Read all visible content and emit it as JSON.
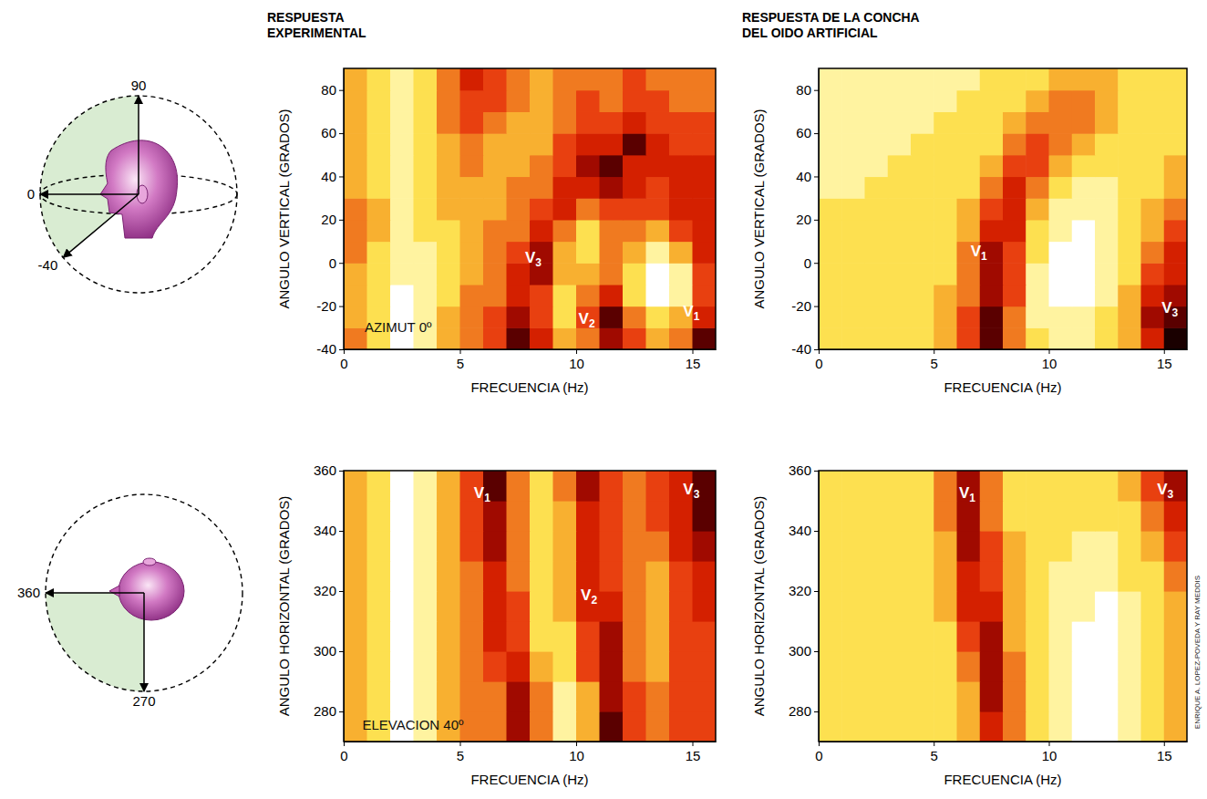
{
  "chart_data": [
    {
      "type": "heatmap",
      "title": "RESPUESTA\nEXPERIMENTAL",
      "xlabel": "FRECUENCIA (Hz)",
      "ylabel": "ANGULO VERTICAL (GRADOS)",
      "xlim": [
        0,
        16
      ],
      "ylim": [
        -40,
        90
      ],
      "xticks": [
        0,
        5,
        10,
        15
      ],
      "yticks": [
        -40,
        -20,
        0,
        20,
        40,
        60,
        80
      ],
      "x_bins": [
        0,
        1,
        2,
        3,
        4,
        5,
        6,
        7,
        8,
        9,
        10,
        11,
        12,
        13,
        14,
        15,
        16
      ],
      "y_bins": [
        -40,
        -30,
        -20,
        -10,
        0,
        10,
        20,
        30,
        40,
        50,
        60,
        70,
        80,
        90
      ],
      "zlim": [
        0,
        9
      ],
      "z": [
        [
          5,
          7,
          9,
          8,
          6,
          5,
          4,
          1,
          3,
          6,
          5,
          2,
          4,
          6,
          5,
          1
        ],
        [
          6,
          7,
          9,
          8,
          6,
          5,
          4,
          2,
          4,
          7,
          4,
          1,
          5,
          7,
          6,
          3
        ],
        [
          6,
          7,
          9,
          8,
          7,
          5,
          5,
          3,
          4,
          7,
          5,
          3,
          7,
          9,
          8,
          4
        ],
        [
          6,
          7,
          8,
          8,
          7,
          6,
          5,
          3,
          2,
          6,
          6,
          5,
          7,
          9,
          8,
          4
        ],
        [
          5,
          7,
          8,
          8,
          7,
          6,
          5,
          4,
          2,
          6,
          7,
          5,
          6,
          8,
          6,
          3
        ],
        [
          5,
          6,
          8,
          7,
          7,
          6,
          5,
          5,
          3,
          5,
          7,
          5,
          5,
          6,
          4,
          3
        ],
        [
          5,
          6,
          8,
          7,
          6,
          6,
          6,
          5,
          4,
          3,
          5,
          4,
          4,
          4,
          3,
          3
        ],
        [
          6,
          7,
          8,
          7,
          6,
          6,
          6,
          5,
          5,
          3,
          3,
          2,
          3,
          4,
          3,
          3
        ],
        [
          6,
          7,
          8,
          7,
          6,
          5,
          6,
          6,
          5,
          4,
          2,
          1,
          3,
          3,
          3,
          3
        ],
        [
          6,
          7,
          8,
          7,
          6,
          5,
          6,
          6,
          6,
          4,
          3,
          3,
          1,
          3,
          4,
          4
        ],
        [
          6,
          7,
          8,
          7,
          5,
          4,
          5,
          6,
          6,
          5,
          4,
          4,
          3,
          4,
          4,
          4
        ],
        [
          6,
          7,
          8,
          7,
          5,
          4,
          4,
          5,
          6,
          5,
          4,
          5,
          4,
          4,
          5,
          5
        ],
        [
          6,
          7,
          8,
          7,
          5,
          3,
          4,
          5,
          6,
          5,
          5,
          5,
          4,
          5,
          5,
          5
        ]
      ],
      "annotations": [
        {
          "text": "V",
          "subscript": "3",
          "x": 7.8,
          "y": 0
        },
        {
          "text": "V",
          "subscript": "2",
          "x": 10.1,
          "y": -28
        },
        {
          "text": "V",
          "subscript": "1",
          "x": 14.6,
          "y": -25
        },
        {
          "text": "AZIMUT 0º",
          "x": 0.9,
          "y": -32
        }
      ]
    },
    {
      "type": "heatmap",
      "title": "RESPUESTA DE LA CONCHA\nDEL OIDO ARTIFICIAL",
      "xlabel": "FRECUENCIA (Hz)",
      "ylabel": "ANGULO VERTICAL (GRADOS)",
      "xlim": [
        0,
        16
      ],
      "ylim": [
        -40,
        90
      ],
      "xticks": [
        0,
        5,
        10,
        15
      ],
      "yticks": [
        -40,
        -20,
        0,
        20,
        40,
        60,
        80
      ],
      "x_bins": [
        0,
        1,
        2,
        3,
        4,
        5,
        6,
        7,
        8,
        9,
        10,
        11,
        12,
        13,
        14,
        15,
        16
      ],
      "y_bins": [
        -40,
        -30,
        -20,
        -10,
        0,
        10,
        20,
        30,
        40,
        50,
        60,
        70,
        80,
        90
      ],
      "zlim": [
        0,
        9
      ],
      "z": [
        [
          7,
          7,
          7,
          7,
          7,
          6,
          4,
          1,
          5,
          7,
          8,
          8,
          7,
          6,
          3,
          0
        ],
        [
          7,
          7,
          7,
          7,
          7,
          6,
          4,
          1,
          5,
          8,
          8,
          8,
          7,
          6,
          2,
          1
        ],
        [
          7,
          7,
          7,
          7,
          7,
          6,
          5,
          2,
          4,
          8,
          9,
          9,
          8,
          6,
          3,
          2
        ],
        [
          7,
          7,
          7,
          7,
          7,
          7,
          5,
          2,
          4,
          8,
          9,
          9,
          8,
          7,
          4,
          3
        ],
        [
          7,
          7,
          7,
          7,
          7,
          7,
          5,
          2,
          4,
          7,
          9,
          9,
          8,
          7,
          5,
          3
        ],
        [
          7,
          7,
          7,
          7,
          7,
          7,
          6,
          3,
          3,
          7,
          8,
          9,
          8,
          7,
          6,
          4
        ],
        [
          7,
          7,
          7,
          7,
          7,
          7,
          6,
          4,
          3,
          6,
          8,
          8,
          8,
          7,
          6,
          5
        ],
        [
          8,
          8,
          7,
          7,
          7,
          7,
          7,
          5,
          3,
          5,
          7,
          8,
          8,
          7,
          7,
          6
        ],
        [
          8,
          8,
          8,
          7,
          7,
          7,
          7,
          6,
          4,
          4,
          6,
          7,
          7,
          7,
          7,
          6
        ],
        [
          8,
          8,
          8,
          8,
          7,
          7,
          7,
          7,
          5,
          4,
          5,
          6,
          7,
          7,
          7,
          7
        ],
        [
          8,
          8,
          8,
          8,
          8,
          7,
          7,
          7,
          6,
          5,
          5,
          5,
          6,
          7,
          7,
          7
        ],
        [
          8,
          8,
          8,
          8,
          8,
          8,
          7,
          7,
          7,
          6,
          5,
          5,
          6,
          7,
          7,
          7
        ],
        [
          8,
          8,
          8,
          8,
          8,
          8,
          8,
          7,
          7,
          7,
          6,
          6,
          6,
          7,
          7,
          7
        ]
      ],
      "annotations": [
        {
          "text": "V",
          "subscript": "1",
          "x": 6.6,
          "y": 3
        },
        {
          "text": "V",
          "subscript": "3",
          "x": 14.9,
          "y": -23
        }
      ]
    },
    {
      "type": "heatmap",
      "xlabel": "FRECUENCIA (Hz)",
      "ylabel": "ANGULO HORIZONTAL (GRADOS)",
      "xlim": [
        0,
        16
      ],
      "ylim": [
        270,
        360
      ],
      "xticks": [
        0,
        5,
        10,
        15
      ],
      "yticks": [
        280,
        300,
        320,
        340,
        360
      ],
      "x_bins": [
        0,
        1,
        2,
        3,
        4,
        5,
        6,
        7,
        8,
        9,
        10,
        11,
        12,
        13,
        14,
        15,
        16
      ],
      "y_bins": [
        270,
        280,
        290,
        300,
        310,
        320,
        330,
        340,
        350,
        360
      ],
      "zlim": [
        0,
        9
      ],
      "z": [
        [
          6,
          7,
          9,
          8,
          6,
          5,
          5,
          2,
          5,
          8,
          6,
          1,
          4,
          5,
          4,
          4
        ],
        [
          6,
          7,
          9,
          8,
          6,
          5,
          5,
          2,
          5,
          8,
          6,
          2,
          4,
          5,
          4,
          4
        ],
        [
          6,
          7,
          9,
          8,
          6,
          5,
          4,
          3,
          6,
          7,
          4,
          2,
          5,
          6,
          4,
          4
        ],
        [
          6,
          7,
          9,
          8,
          6,
          5,
          3,
          4,
          7,
          7,
          4,
          2,
          5,
          6,
          4,
          4
        ],
        [
          6,
          7,
          9,
          8,
          6,
          5,
          3,
          4,
          7,
          6,
          3,
          3,
          5,
          6,
          4,
          3
        ],
        [
          6,
          7,
          9,
          8,
          6,
          5,
          3,
          5,
          7,
          6,
          3,
          4,
          5,
          6,
          4,
          3
        ],
        [
          6,
          7,
          9,
          8,
          6,
          4,
          2,
          5,
          7,
          6,
          3,
          4,
          5,
          5,
          3,
          2
        ],
        [
          6,
          7,
          9,
          8,
          6,
          4,
          2,
          5,
          7,
          6,
          3,
          4,
          5,
          4,
          3,
          1
        ],
        [
          6,
          7,
          9,
          8,
          6,
          4,
          1,
          5,
          7,
          5,
          2,
          4,
          5,
          4,
          3,
          1
        ]
      ],
      "annotations": [
        {
          "text": "V",
          "subscript": "1",
          "x": 5.6,
          "y": 351
        },
        {
          "text": "V",
          "subscript": "2",
          "x": 10.2,
          "y": 317
        },
        {
          "text": "V",
          "subscript": "3",
          "x": 14.6,
          "y": 352
        },
        {
          "text": "ELEVACION 40º",
          "x": 0.8,
          "y": 274
        }
      ]
    },
    {
      "type": "heatmap",
      "xlabel": "FRECUENCIA (Hz)",
      "ylabel": "ANGULO HORIZONTAL (GRADOS)",
      "xlim": [
        0,
        16
      ],
      "ylim": [
        270,
        360
      ],
      "xticks": [
        0,
        5,
        10,
        15
      ],
      "yticks": [
        280,
        300,
        320,
        340,
        360
      ],
      "x_bins": [
        0,
        1,
        2,
        3,
        4,
        5,
        6,
        7,
        8,
        9,
        10,
        11,
        12,
        13,
        14,
        15,
        16
      ],
      "y_bins": [
        270,
        280,
        290,
        300,
        310,
        320,
        330,
        340,
        350,
        360
      ],
      "zlim": [
        0,
        9
      ],
      "z": [
        [
          7,
          7,
          7,
          7,
          7,
          7,
          6,
          3,
          5,
          7,
          8,
          9,
          9,
          8,
          7,
          6
        ],
        [
          7,
          7,
          7,
          7,
          7,
          7,
          6,
          2,
          5,
          7,
          8,
          9,
          9,
          8,
          7,
          6
        ],
        [
          7,
          7,
          7,
          7,
          7,
          7,
          5,
          2,
          5,
          7,
          8,
          9,
          9,
          8,
          7,
          6
        ],
        [
          7,
          7,
          7,
          7,
          7,
          7,
          4,
          2,
          6,
          7,
          8,
          9,
          9,
          8,
          7,
          6
        ],
        [
          7,
          7,
          7,
          7,
          7,
          6,
          3,
          3,
          6,
          7,
          8,
          8,
          9,
          8,
          7,
          6
        ],
        [
          7,
          7,
          7,
          7,
          7,
          6,
          3,
          4,
          6,
          7,
          8,
          8,
          8,
          7,
          7,
          5
        ],
        [
          7,
          7,
          7,
          7,
          7,
          6,
          2,
          4,
          6,
          7,
          7,
          8,
          8,
          7,
          6,
          4
        ],
        [
          7,
          7,
          7,
          7,
          7,
          5,
          2,
          5,
          7,
          7,
          7,
          7,
          7,
          7,
          5,
          3
        ],
        [
          7,
          7,
          7,
          7,
          7,
          5,
          2,
          5,
          7,
          7,
          7,
          7,
          7,
          6,
          4,
          2
        ]
      ],
      "annotations": [
        {
          "text": "V",
          "subscript": "1",
          "x": 6.1,
          "y": 351
        },
        {
          "text": "V",
          "subscript": "3",
          "x": 14.7,
          "y": 352
        }
      ]
    }
  ],
  "diagrams": [
    {
      "labels": [
        "90",
        "0",
        "-40"
      ]
    },
    {
      "labels": [
        "360",
        "270"
      ]
    }
  ],
  "credit": "ENRIQUE A. LOPEZ-POVEDA Y RAY MEDDIS"
}
